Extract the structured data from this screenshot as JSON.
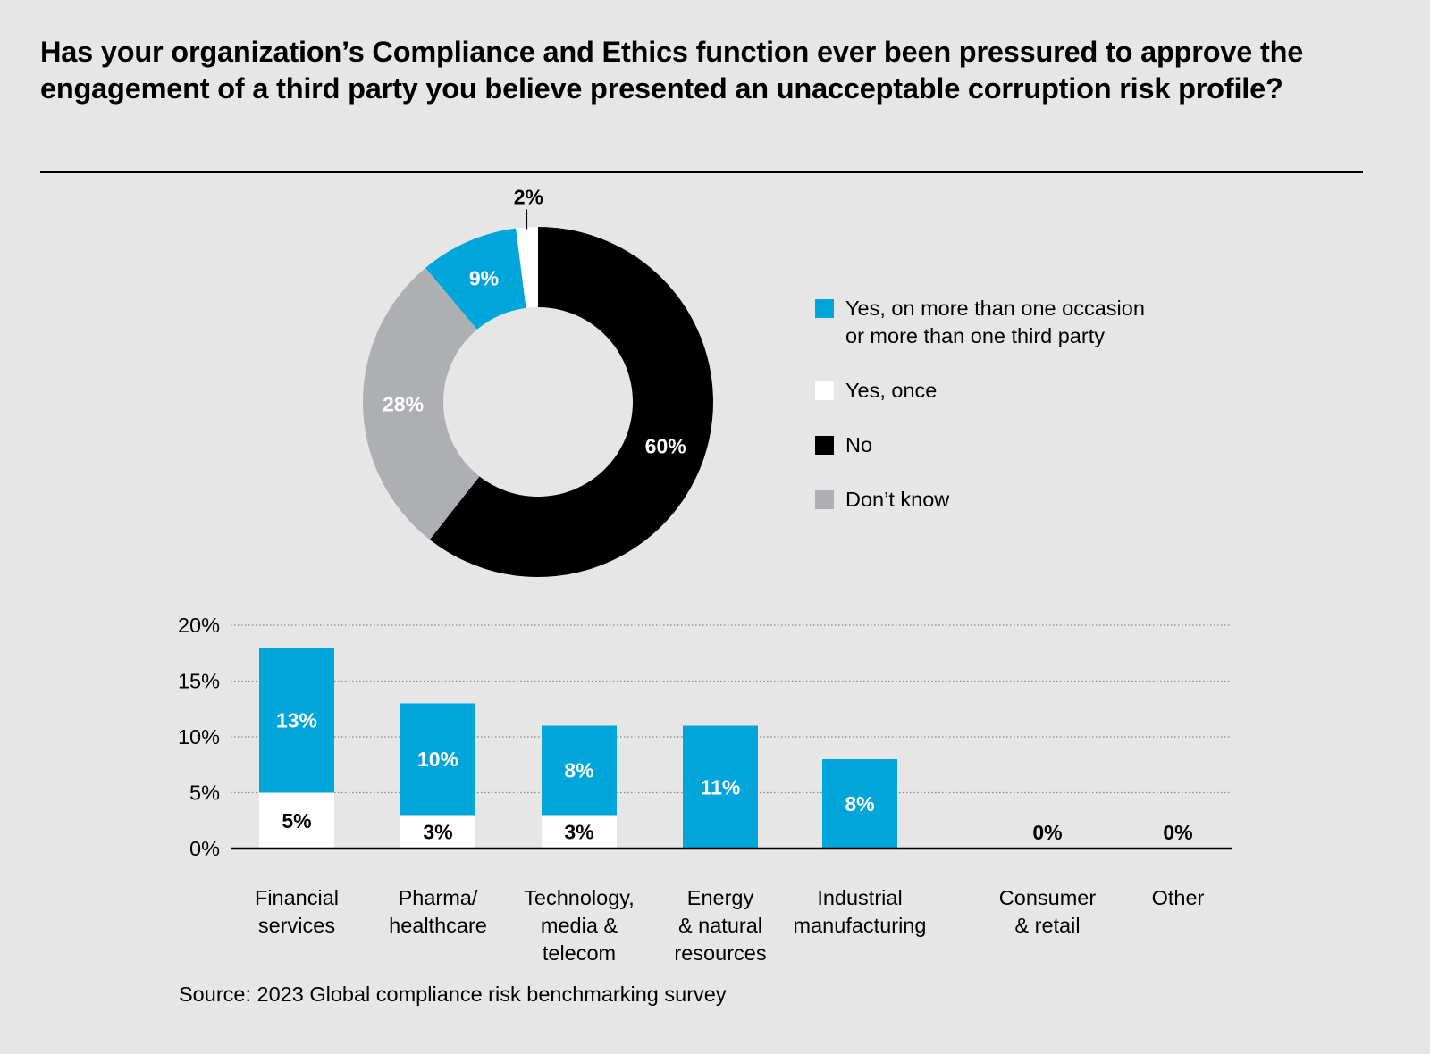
{
  "title": "Has your organization’s Compliance and Ethics function ever been pressured to approve the engagement of a third party you believe presented an unacceptable corruption risk profile?",
  "source": "Source: 2023 Global compliance risk benchmarking survey",
  "legend": [
    {
      "label_line1": "Yes, on more than one occasion",
      "label_line2": "or more than one third party",
      "color": "#00a5d9"
    },
    {
      "label_line1": "Yes, once",
      "label_line2": "",
      "color": "#ffffff"
    },
    {
      "label_line1": "No",
      "label_line2": "",
      "color": "#000000"
    },
    {
      "label_line1": "Don’t know",
      "label_line2": "",
      "color": "#aeafb2"
    }
  ],
  "chart_data": [
    {
      "type": "pie",
      "variant": "donut",
      "title": "",
      "slices": [
        {
          "name": "No",
          "value": 60,
          "label": "60%",
          "color": "#000000",
          "label_color": "#ffffff"
        },
        {
          "name": "Don’t know",
          "value": 28,
          "label": "28%",
          "color": "#aeafb2",
          "label_color": "#ffffff"
        },
        {
          "name": "Yes, on more than one occasion or more than one third party",
          "value": 9,
          "label": "9%",
          "color": "#00a5d9",
          "label_color": "#ffffff"
        },
        {
          "name": "Yes, once",
          "value": 2,
          "label": "2%",
          "color": "#ffffff",
          "label_color": "#000000",
          "callout": true
        }
      ],
      "start": "top",
      "direction": "clockwise",
      "legend_position": "right"
    },
    {
      "type": "bar",
      "stacked": true,
      "title": "",
      "xlabel": "",
      "ylabel": "",
      "ylim": [
        0,
        20
      ],
      "yticks": [
        "0%",
        "5%",
        "10%",
        "15%",
        "20%"
      ],
      "ytick_values": [
        0,
        5,
        10,
        15,
        20
      ],
      "grid": true,
      "categories": [
        [
          "Financial",
          "services"
        ],
        [
          "Pharma/",
          "healthcare"
        ],
        [
          "Technology,",
          "media &",
          "telecom"
        ],
        [
          "Energy",
          "& natural",
          "resources"
        ],
        [
          "Industrial",
          "manufacturing"
        ],
        [
          "Consumer",
          "& retail"
        ],
        [
          "Other"
        ]
      ],
      "series": [
        {
          "name": "Yes, once",
          "color": "#ffffff",
          "label_color": "#000000",
          "values": [
            5,
            3,
            3,
            0,
            0,
            0,
            0
          ],
          "labels": [
            "5%",
            "3%",
            "3%",
            "",
            "",
            "0%",
            "0%"
          ]
        },
        {
          "name": "Yes, on more than one occasion or more than one third party",
          "color": "#00a5d9",
          "label_color": "#ffffff",
          "values": [
            13,
            10,
            8,
            11,
            8,
            0,
            0
          ],
          "labels": [
            "13%",
            "10%",
            "8%",
            "11%",
            "8%",
            "",
            ""
          ]
        }
      ]
    }
  ]
}
